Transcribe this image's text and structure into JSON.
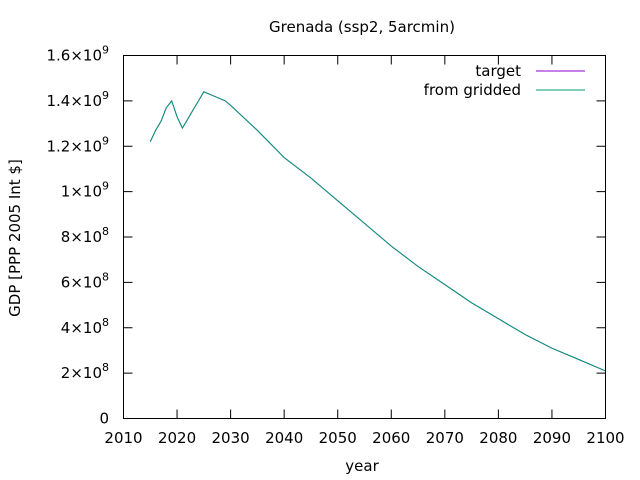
{
  "chart_data": {
    "type": "line",
    "title": "Grenada (ssp2, 5arcmin)",
    "xlabel": "year",
    "ylabel": "GDP [PPP 2005 Int $]",
    "xlim": [
      2010,
      2100
    ],
    "ylim": [
      0,
      1600000000
    ],
    "grid": false,
    "legend_position": "top-right",
    "x_ticks": [
      2010,
      2020,
      2030,
      2040,
      2050,
      2060,
      2070,
      2080,
      2090,
      2100
    ],
    "x_tick_labels": [
      "2010",
      "2020",
      "2030",
      "2040",
      "2050",
      "2060",
      "2070",
      "2080",
      "2090",
      "2100"
    ],
    "y_ticks": [
      {
        "value": 0,
        "mantissa": "0",
        "exponent": ""
      },
      {
        "value": 200000000,
        "mantissa": "2×10",
        "exponent": "8"
      },
      {
        "value": 400000000,
        "mantissa": "4×10",
        "exponent": "8"
      },
      {
        "value": 600000000,
        "mantissa": "6×10",
        "exponent": "8"
      },
      {
        "value": 800000000,
        "mantissa": "8×10",
        "exponent": "8"
      },
      {
        "value": 1000000000,
        "mantissa": "1×10",
        "exponent": "9"
      },
      {
        "value": 1200000000,
        "mantissa": "1.2×10",
        "exponent": "9"
      },
      {
        "value": 1400000000,
        "mantissa": "1.4×10",
        "exponent": "9"
      },
      {
        "value": 1600000000,
        "mantissa": "1.6×10",
        "exponent": "9"
      }
    ],
    "x": [
      2015,
      2016,
      2017,
      2018,
      2019,
      2020,
      2021,
      2022,
      2023,
      2024,
      2025,
      2026,
      2027,
      2028,
      2029,
      2030,
      2035,
      2040,
      2045,
      2050,
      2055,
      2060,
      2065,
      2070,
      2075,
      2080,
      2085,
      2090,
      2095,
      2100
    ],
    "series": [
      {
        "name": "target",
        "color": "#9400d3",
        "values": [
          1220000000,
          1270000000,
          1310000000,
          1370000000,
          1400000000,
          1330000000,
          1280000000,
          1320000000,
          1360000000,
          1400000000,
          1440000000,
          1430000000,
          1420000000,
          1410000000,
          1400000000,
          1380000000,
          1270000000,
          1150000000,
          1060000000,
          960000000,
          860000000,
          760000000,
          670000000,
          590000000,
          510000000,
          440000000,
          370000000,
          310000000,
          260000000,
          210000000
        ]
      },
      {
        "name": "from gridded",
        "color": "#009e73",
        "values": [
          1220000000,
          1270000000,
          1310000000,
          1370000000,
          1400000000,
          1330000000,
          1280000000,
          1320000000,
          1360000000,
          1400000000,
          1440000000,
          1430000000,
          1420000000,
          1410000000,
          1400000000,
          1380000000,
          1270000000,
          1150000000,
          1060000000,
          960000000,
          860000000,
          760000000,
          670000000,
          590000000,
          510000000,
          440000000,
          370000000,
          310000000,
          260000000,
          210000000
        ]
      }
    ]
  }
}
